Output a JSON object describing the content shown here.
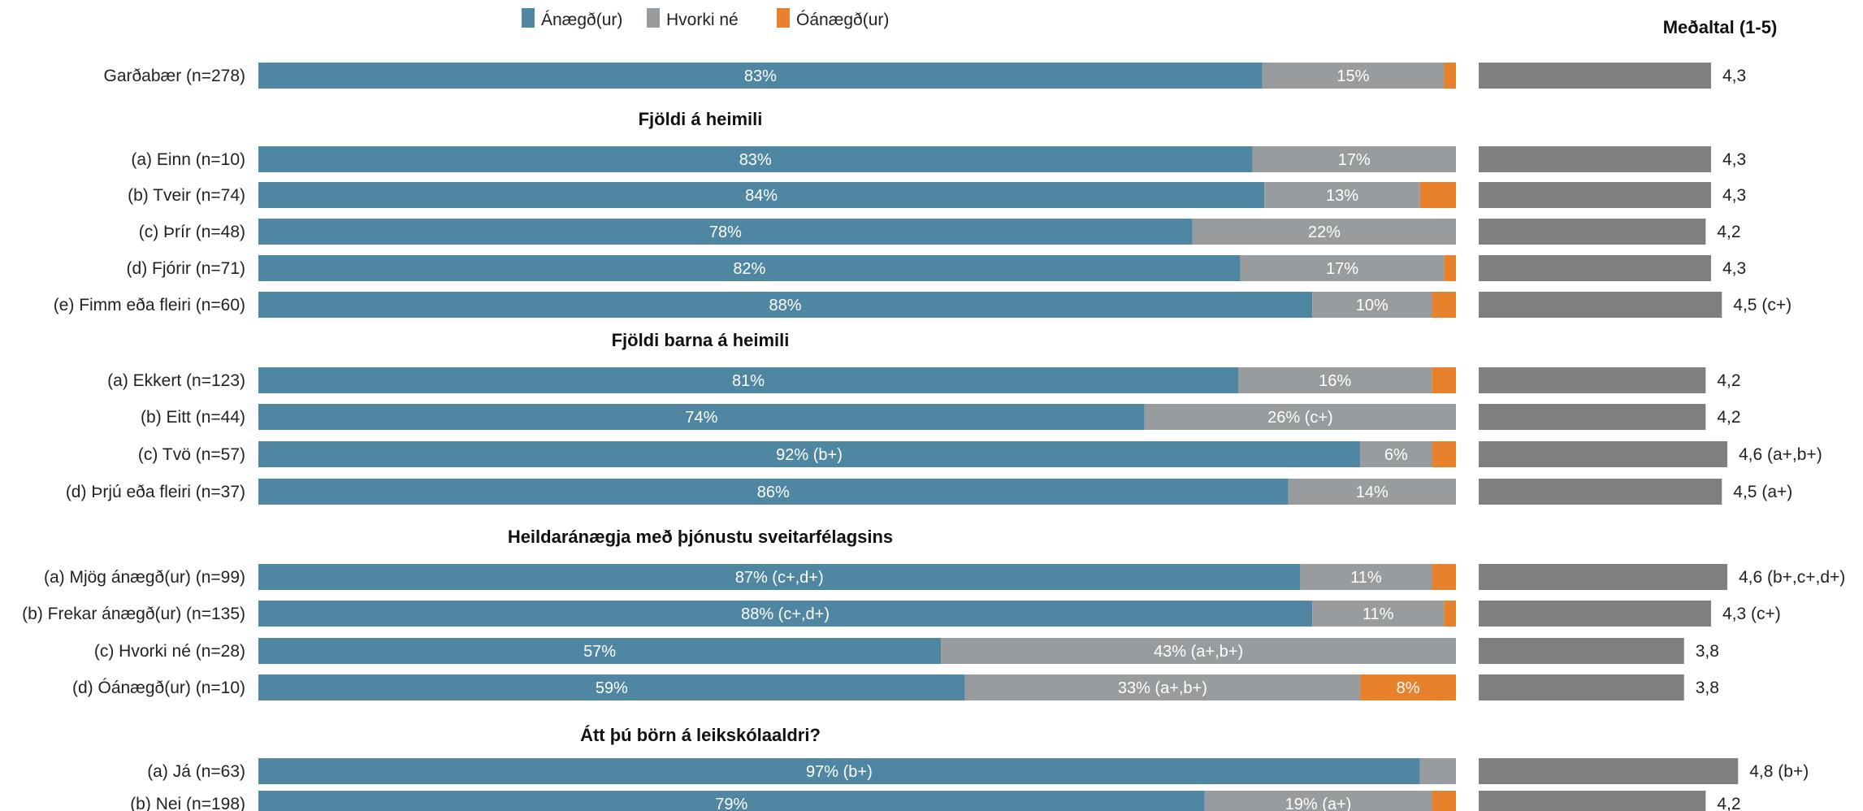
{
  "colors": {
    "satisfied": "#4f87a3",
    "neutral": "#989c9e",
    "dissatisfied": "#e8812b",
    "mean": "#7f7f7f"
  },
  "legend": [
    {
      "label": "Ánægð(ur)",
      "color": "#4f87a3"
    },
    {
      "label": "Hvorki né",
      "color": "#989c9e"
    },
    {
      "label": "Óánægð(ur)",
      "color": "#e8812b"
    }
  ],
  "mean_title": "Meðaltal (1-5)",
  "chart_data": {
    "type": "bar",
    "stacked": true,
    "orientation": "horizontal",
    "series_names": [
      "Ánægð(ur)",
      "Hvorki né",
      "Óánægð(ur)"
    ],
    "mean_axis": [
      0,
      5
    ],
    "groups": [
      {
        "header": "",
        "rows": [
          {
            "label": "Garðabær (n=278)",
            "values": [
              83,
              15,
              1
            ],
            "seg_labels": [
              "83%",
              "15%",
              ""
            ],
            "mean": 4.3,
            "mean_label": "4,3"
          }
        ]
      },
      {
        "header": "Fjöldi  á heimili",
        "rows": [
          {
            "label": "(a) Einn (n=10)",
            "values": [
              83,
              17,
              0
            ],
            "seg_labels": [
              "83%",
              "17%",
              ""
            ],
            "mean": 4.3,
            "mean_label": "4,3"
          },
          {
            "label": "(b) Tveir (n=74)",
            "values": [
              84,
              13,
              3
            ],
            "seg_labels": [
              "84%",
              "13%",
              ""
            ],
            "mean": 4.3,
            "mean_label": "4,3"
          },
          {
            "label": "(c) Þrír (n=48)",
            "values": [
              78,
              22,
              0
            ],
            "seg_labels": [
              "78%",
              "22%",
              ""
            ],
            "mean": 4.2,
            "mean_label": "4,2"
          },
          {
            "label": "(d) Fjórir (n=71)",
            "values": [
              82,
              17,
              1
            ],
            "seg_labels": [
              "82%",
              "17%",
              ""
            ],
            "mean": 4.3,
            "mean_label": "4,3"
          },
          {
            "label": "(e) Fimm eða fleiri (n=60)",
            "values": [
              88,
              10,
              2
            ],
            "seg_labels": [
              "88%",
              "10%",
              ""
            ],
            "mean": 4.5,
            "mean_label": "4,5 (c+)"
          }
        ]
      },
      {
        "header": "Fjöldi  barna á heimili",
        "rows": [
          {
            "label": "(a) Ekkert (n=123)",
            "values": [
              81,
              16,
              2
            ],
            "seg_labels": [
              "81%",
              "16%",
              ""
            ],
            "mean": 4.2,
            "mean_label": "4,2"
          },
          {
            "label": "(b) Eitt (n=44)",
            "values": [
              74,
              26,
              0
            ],
            "seg_labels": [
              "74%",
              "26% (c+)",
              ""
            ],
            "mean": 4.2,
            "mean_label": "4,2"
          },
          {
            "label": "(c) Tvö (n=57)",
            "values": [
              92,
              6,
              2
            ],
            "seg_labels": [
              "92% (b+)",
              "6%",
              ""
            ],
            "mean": 4.6,
            "mean_label": "4,6 (a+,b+)"
          },
          {
            "label": "(d) Þrjú eða fleiri (n=37)",
            "values": [
              86,
              14,
              0
            ],
            "seg_labels": [
              "86%",
              "14%",
              ""
            ],
            "mean": 4.5,
            "mean_label": "4,5 (a+)"
          }
        ]
      },
      {
        "header": "Heildaránægja með þjónustu sveitarfélagsins",
        "rows": [
          {
            "label": "(a) Mjög ánægð(ur) (n=99)",
            "values": [
              87,
              11,
              2
            ],
            "seg_labels": [
              "87% (c+,d+)",
              "11%",
              ""
            ],
            "mean": 4.6,
            "mean_label": "4,6 (b+,c+,d+)"
          },
          {
            "label": "(b) Frekar ánægð(ur) (n=135)",
            "values": [
              88,
              11,
              1
            ],
            "seg_labels": [
              "88% (c+,d+)",
              "11%",
              ""
            ],
            "mean": 4.3,
            "mean_label": "4,3 (c+)"
          },
          {
            "label": "(c) Hvorki né (n=28)",
            "values": [
              57,
              43,
              0
            ],
            "seg_labels": [
              "57%",
              "43% (a+,b+)",
              ""
            ],
            "mean": 3.8,
            "mean_label": "3,8"
          },
          {
            "label": "(d) Óánægð(ur) (n=10)",
            "values": [
              59,
              33,
              8
            ],
            "seg_labels": [
              "59%",
              "33% (a+,b+)",
              "8%"
            ],
            "mean": 3.8,
            "mean_label": "3,8"
          }
        ]
      },
      {
        "header": "Átt þú börn á leikskólaaldri?",
        "rows": [
          {
            "label": "(a) Já (n=63)",
            "values": [
              97,
              3,
              0
            ],
            "seg_labels": [
              "97% (b+)",
              "",
              ""
            ],
            "mean": 4.8,
            "mean_label": "4,8 (b+)"
          },
          {
            "label": "(b) Nei (n=198)",
            "values": [
              79,
              19,
              2
            ],
            "seg_labels": [
              "79%",
              "19% (a+)",
              ""
            ],
            "mean": 4.2,
            "mean_label": "4,2"
          }
        ]
      }
    ]
  }
}
